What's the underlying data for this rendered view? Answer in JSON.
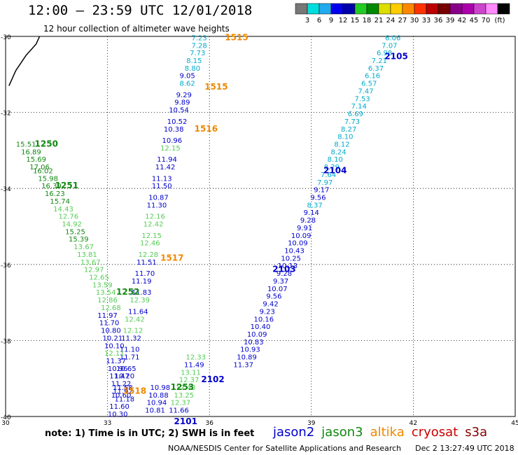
{
  "title": "12:00 – 23:59 UTC 12/01/2018",
  "subtitle": "12 hour collection of altimeter wave heights",
  "colorbar": {
    "unit": "(ft)",
    "colors": [
      "#777777",
      "#00dddd",
      "#22aaee",
      "#0000ee",
      "#0000aa",
      "#22cc22",
      "#008800",
      "#dddd00",
      "#ffcc00",
      "#ff8800",
      "#ff3300",
      "#bb0000",
      "#770000",
      "#880088",
      "#aa00aa",
      "#cc44cc",
      "#ff88ff",
      "#000000"
    ],
    "labels": [
      "3",
      "6",
      "9",
      "12",
      "15",
      "18",
      "21",
      "24",
      "27",
      "30",
      "33",
      "36",
      "39",
      "42",
      "45",
      "70"
    ]
  },
  "axes": {
    "x_ticks": [
      "30",
      "33",
      "36",
      "39",
      "42",
      "45"
    ],
    "y_ticks": [
      "-30",
      "-32",
      "-34",
      "-36",
      "-38",
      "-40"
    ]
  },
  "note": "note: 1) Time is in UTC; 2) SWH is in feet",
  "satellites": [
    {
      "name": "jason2",
      "color": "#0000cc"
    },
    {
      "name": "jason3",
      "color": "#118811"
    },
    {
      "name": "altika",
      "color": "#ee8800"
    },
    {
      "name": "cryosat",
      "color": "#cc0000"
    },
    {
      "name": "s3a",
      "color": "#880000"
    }
  ],
  "credit": "NOAA/NESDIS Center for Satellite Applications and Research",
  "timestamp": "Dec  2 13:27:49 UTC 2018",
  "chart_data": {
    "type": "scatter",
    "xlim": [
      30,
      45
    ],
    "ylim": [
      -40,
      -30
    ],
    "grid": true,
    "tracks": [
      {
        "satellite": "altika",
        "labels": [
          {
            "text": "1515",
            "lon": 36.8,
            "lat": -30.1
          },
          {
            "text": "1515",
            "lon": 36.2,
            "lat": -31.4
          },
          {
            "text": "1516",
            "lon": 35.9,
            "lat": -32.5
          },
          {
            "text": "1517",
            "lon": 34.9,
            "lat": -35.9
          },
          {
            "text": "1518",
            "lon": 33.8,
            "lat": -39.4
          }
        ],
        "points": [
          {
            "lon": 35.7,
            "lat": -30.1,
            "v": "7.23"
          },
          {
            "lon": 35.7,
            "lat": -30.3,
            "v": "7.28"
          },
          {
            "lon": 35.65,
            "lat": -30.5,
            "v": "7.73"
          },
          {
            "lon": 35.55,
            "lat": -30.7,
            "v": "8.15"
          },
          {
            "lon": 35.5,
            "lat": -30.9,
            "v": "8.80"
          },
          {
            "lon": 35.35,
            "lat": -31.1,
            "v": "9.05"
          },
          {
            "lon": 35.35,
            "lat": -31.3,
            "v": "8.62"
          },
          {
            "lon": 35.25,
            "lat": -31.6,
            "v": "9.29"
          },
          {
            "lon": 35.2,
            "lat": -31.8,
            "v": "9.89"
          },
          {
            "lon": 35.1,
            "lat": -32.0,
            "v": "10.54"
          },
          {
            "lon": 35.05,
            "lat": -32.3,
            "v": "10.52"
          },
          {
            "lon": 34.95,
            "lat": -32.5,
            "v": "10.38"
          },
          {
            "lon": 34.9,
            "lat": -32.8,
            "v": "10.96"
          },
          {
            "lon": 34.85,
            "lat": -33.0,
            "v": "12.15"
          },
          {
            "lon": 34.75,
            "lat": -33.3,
            "v": "11.94"
          },
          {
            "lon": 34.7,
            "lat": -33.5,
            "v": "11.42"
          },
          {
            "lon": 34.6,
            "lat": -33.8,
            "v": "11.13"
          },
          {
            "lon": 34.6,
            "lat": -34.0,
            "v": "11.50"
          },
          {
            "lon": 34.5,
            "lat": -34.3,
            "v": "10.87"
          },
          {
            "lon": 34.45,
            "lat": -34.5,
            "v": "11.30"
          },
          {
            "lon": 34.4,
            "lat": -34.8,
            "v": "12.16"
          },
          {
            "lon": 34.35,
            "lat": -35.0,
            "v": "12.42"
          },
          {
            "lon": 34.3,
            "lat": -35.3,
            "v": "12.15"
          },
          {
            "lon": 34.25,
            "lat": -35.5,
            "v": "12.46"
          },
          {
            "lon": 34.2,
            "lat": -35.8,
            "v": "12.28"
          },
          {
            "lon": 34.15,
            "lat": -36.0,
            "v": "11.51"
          },
          {
            "lon": 34.1,
            "lat": -36.3,
            "v": "11.70"
          },
          {
            "lon": 34.0,
            "lat": -36.5,
            "v": "11.19"
          },
          {
            "lon": 34.0,
            "lat": -36.8,
            "v": "11.83"
          },
          {
            "lon": 33.95,
            "lat": -37.0,
            "v": "12.39"
          },
          {
            "lon": 33.9,
            "lat": -37.3,
            "v": "11.64"
          },
          {
            "lon": 33.8,
            "lat": -37.5,
            "v": "12.42"
          },
          {
            "lon": 33.75,
            "lat": -37.8,
            "v": "12.12"
          },
          {
            "lon": 33.7,
            "lat": -38.0,
            "v": "11.32"
          },
          {
            "lon": 33.65,
            "lat": -38.3,
            "v": "11.10"
          },
          {
            "lon": 33.65,
            "lat": -38.5,
            "v": "11.71"
          },
          {
            "lon": 33.55,
            "lat": -38.8,
            "v": "10.65"
          },
          {
            "lon": 33.5,
            "lat": -39.0,
            "v": "10.20"
          },
          {
            "lon": 33.45,
            "lat": -39.3,
            "v": "11.58"
          },
          {
            "lon": 33.4,
            "lat": -39.5,
            "v": "10.60"
          },
          {
            "lon": 33.35,
            "lat": -39.8,
            "v": "11.60"
          },
          {
            "lon": 33.3,
            "lat": -40.0,
            "v": "10.30"
          }
        ]
      },
      {
        "satellite": "jason3",
        "labels": [
          {
            "text": "1250",
            "lon": 31.2,
            "lat": -32.9
          },
          {
            "text": "1251",
            "lon": 31.8,
            "lat": -34.0
          },
          {
            "text": "1252",
            "lon": 33.6,
            "lat": -36.8
          },
          {
            "text": "1253",
            "lon": 35.2,
            "lat": -39.3
          }
        ],
        "points": [
          {
            "lon": 30.6,
            "lat": -32.9,
            "v": "15.51"
          },
          {
            "lon": 30.75,
            "lat": -33.1,
            "v": "16.89"
          },
          {
            "lon": 30.9,
            "lat": -33.3,
            "v": "15.69"
          },
          {
            "lon": 31.0,
            "lat": -33.5,
            "v": "17.06"
          },
          {
            "lon": 31.1,
            "lat": -33.6,
            "v": "16.02"
          },
          {
            "lon": 31.25,
            "lat": -33.8,
            "v": "15.98"
          },
          {
            "lon": 31.35,
            "lat": -34.0,
            "v": "16.39"
          },
          {
            "lon": 31.45,
            "lat": -34.2,
            "v": "16.23"
          },
          {
            "lon": 31.6,
            "lat": -34.4,
            "v": "15.74"
          },
          {
            "lon": 31.7,
            "lat": -34.6,
            "v": "14.43"
          },
          {
            "lon": 31.85,
            "lat": -34.8,
            "v": "12.76"
          },
          {
            "lon": 31.95,
            "lat": -35.0,
            "v": "14.92"
          },
          {
            "lon": 32.05,
            "lat": -35.2,
            "v": "15.25"
          },
          {
            "lon": 32.15,
            "lat": -35.4,
            "v": "15.39"
          },
          {
            "lon": 32.3,
            "lat": -35.6,
            "v": "13.67"
          },
          {
            "lon": 32.4,
            "lat": -35.8,
            "v": "13.81"
          },
          {
            "lon": 32.5,
            "lat": -36.0,
            "v": "13.67"
          },
          {
            "lon": 32.6,
            "lat": -36.2,
            "v": "12.97"
          },
          {
            "lon": 32.75,
            "lat": -36.4,
            "v": "12.65"
          },
          {
            "lon": 32.85,
            "lat": -36.6,
            "v": "13.59"
          },
          {
            "lon": 32.95,
            "lat": -36.8,
            "v": "13.54"
          },
          {
            "lon": 33.0,
            "lat": -37.0,
            "v": "12.86"
          },
          {
            "lon": 33.1,
            "lat": -37.2,
            "v": "12.68"
          },
          {
            "lon": 35.6,
            "lat": -38.5,
            "v": "12.33"
          },
          {
            "lon": 35.55,
            "lat": -38.7,
            "v": "11.49"
          },
          {
            "lon": 35.45,
            "lat": -38.9,
            "v": "13.11"
          },
          {
            "lon": 35.4,
            "lat": -39.1,
            "v": "12.37"
          },
          {
            "lon": 35.3,
            "lat": -39.3,
            "v": "12.43"
          },
          {
            "lon": 35.25,
            "lat": -39.5,
            "v": "13.25"
          },
          {
            "lon": 35.15,
            "lat": -39.7,
            "v": "12.37"
          },
          {
            "lon": 35.1,
            "lat": -39.9,
            "v": "11.66"
          }
        ]
      },
      {
        "satellite": "jason2",
        "labels": [
          {
            "text": "2105",
            "lon": 41.5,
            "lat": -30.6
          },
          {
            "text": "2104",
            "lon": 39.7,
            "lat": -33.6
          },
          {
            "text": "2103",
            "lon": 38.2,
            "lat": -36.2
          },
          {
            "text": "2102",
            "lon": 36.1,
            "lat": -39.1
          },
          {
            "text": "2101",
            "lon": 35.3,
            "lat": -40.2
          }
        ],
        "points": [
          {
            "lon": 41.4,
            "lat": -30.1,
            "v": "6.06"
          },
          {
            "lon": 41.3,
            "lat": -30.3,
            "v": "7.07"
          },
          {
            "lon": 41.15,
            "lat": -30.5,
            "v": "6.98"
          },
          {
            "lon": 41.0,
            "lat": -30.7,
            "v": "7.21"
          },
          {
            "lon": 40.9,
            "lat": -30.9,
            "v": "6.37"
          },
          {
            "lon": 40.8,
            "lat": -31.1,
            "v": "6.16"
          },
          {
            "lon": 40.7,
            "lat": -31.3,
            "v": "6.57"
          },
          {
            "lon": 40.6,
            "lat": -31.5,
            "v": "7.47"
          },
          {
            "lon": 40.5,
            "lat": -31.7,
            "v": "7.53"
          },
          {
            "lon": 40.4,
            "lat": -31.9,
            "v": "7.14"
          },
          {
            "lon": 40.3,
            "lat": -32.1,
            "v": "6.69"
          },
          {
            "lon": 40.2,
            "lat": -32.3,
            "v": "7.73"
          },
          {
            "lon": 40.1,
            "lat": -32.5,
            "v": "8.27"
          },
          {
            "lon": 40.0,
            "lat": -32.7,
            "v": "8.10"
          },
          {
            "lon": 39.9,
            "lat": -32.9,
            "v": "8.12"
          },
          {
            "lon": 39.8,
            "lat": -33.1,
            "v": "8.24"
          },
          {
            "lon": 39.7,
            "lat": -33.3,
            "v": "8.10"
          },
          {
            "lon": 39.6,
            "lat": -33.5,
            "v": "8.29"
          },
          {
            "lon": 39.5,
            "lat": -33.7,
            "v": "7.64"
          },
          {
            "lon": 39.4,
            "lat": -33.9,
            "v": "7.97"
          },
          {
            "lon": 39.3,
            "lat": -34.1,
            "v": "9.17"
          },
          {
            "lon": 39.2,
            "lat": -34.3,
            "v": "9.56"
          },
          {
            "lon": 39.1,
            "lat": -34.5,
            "v": "8.37"
          },
          {
            "lon": 39.0,
            "lat": -34.7,
            "v": "9.14"
          },
          {
            "lon": 38.9,
            "lat": -34.9,
            "v": "9.28"
          },
          {
            "lon": 38.8,
            "lat": -35.1,
            "v": "9.91"
          },
          {
            "lon": 38.7,
            "lat": -35.3,
            "v": "10.09"
          },
          {
            "lon": 38.6,
            "lat": -35.5,
            "v": "10.09"
          },
          {
            "lon": 38.5,
            "lat": -35.7,
            "v": "10.43"
          },
          {
            "lon": 38.4,
            "lat": -35.9,
            "v": "10.25"
          },
          {
            "lon": 38.3,
            "lat": -36.1,
            "v": "10.13"
          },
          {
            "lon": 38.2,
            "lat": -36.3,
            "v": "9.28"
          },
          {
            "lon": 38.1,
            "lat": -36.5,
            "v": "9.37"
          },
          {
            "lon": 38.0,
            "lat": -36.7,
            "v": "10.07"
          },
          {
            "lon": 37.9,
            "lat": -36.9,
            "v": "9.56"
          },
          {
            "lon": 37.8,
            "lat": -37.1,
            "v": "9.42"
          },
          {
            "lon": 37.7,
            "lat": -37.3,
            "v": "9.23"
          },
          {
            "lon": 37.6,
            "lat": -37.5,
            "v": "10.16"
          },
          {
            "lon": 37.5,
            "lat": -37.7,
            "v": "10.40"
          },
          {
            "lon": 37.4,
            "lat": -37.9,
            "v": "10.09"
          },
          {
            "lon": 37.3,
            "lat": -38.1,
            "v": "10.83"
          },
          {
            "lon": 37.2,
            "lat": -38.3,
            "v": "10.93"
          },
          {
            "lon": 37.1,
            "lat": -38.5,
            "v": "10.89"
          },
          {
            "lon": 37.0,
            "lat": -38.7,
            "v": "11.37"
          },
          {
            "lon": 33.0,
            "lat": -37.4,
            "v": "11.97"
          },
          {
            "lon": 33.05,
            "lat": -37.6,
            "v": "11.70"
          },
          {
            "lon": 33.1,
            "lat": -37.8,
            "v": "10.80"
          },
          {
            "lon": 33.15,
            "lat": -38.0,
            "v": "10.21"
          },
          {
            "lon": 33.2,
            "lat": -38.2,
            "v": "10.10"
          },
          {
            "lon": 33.2,
            "lat": -38.4,
            "v": "12.11"
          },
          {
            "lon": 33.25,
            "lat": -38.6,
            "v": "11.37"
          },
          {
            "lon": 33.3,
            "lat": -38.8,
            "v": "10.96"
          },
          {
            "lon": 33.35,
            "lat": -39.0,
            "v": "11.47"
          },
          {
            "lon": 33.4,
            "lat": -39.2,
            "v": "11.22"
          },
          {
            "lon": 33.45,
            "lat": -39.4,
            "v": "11.92"
          },
          {
            "lon": 33.5,
            "lat": -39.6,
            "v": "11.18"
          },
          {
            "lon": 34.55,
            "lat": -39.3,
            "v": "10.98"
          },
          {
            "lon": 34.5,
            "lat": -39.5,
            "v": "10.88"
          },
          {
            "lon": 34.45,
            "lat": -39.7,
            "v": "10.94"
          },
          {
            "lon": 34.4,
            "lat": -39.9,
            "v": "10.81"
          }
        ]
      }
    ],
    "coastline": [
      [
        30.1,
        -31.3
      ],
      [
        30.3,
        -30.9
      ],
      [
        30.6,
        -30.5
      ],
      [
        30.9,
        -30.2
      ],
      [
        31.0,
        -30.0
      ]
    ]
  }
}
